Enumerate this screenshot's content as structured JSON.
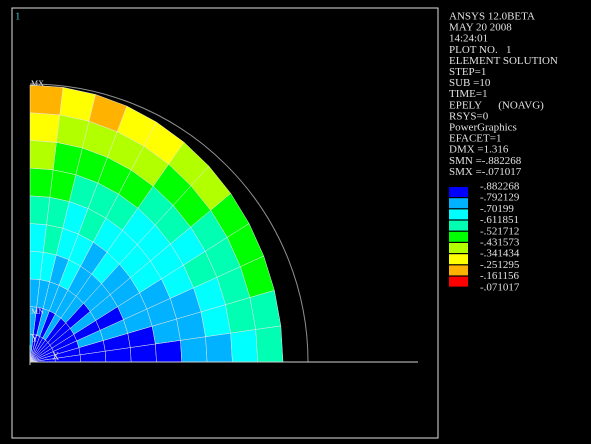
{
  "window_number": "1",
  "info_lines": [
    "ANSYS 12.0BETA",
    "MAY 20 2008",
    "14:24:01",
    "PLOT NO.   1",
    "ELEMENT SOLUTION",
    "STEP=1",
    "SUB =10",
    "TIME=1",
    "EPELY      (NOAVG)",
    "RSYS=0",
    "PowerGraphics",
    "EFACET=1",
    "DMX =1.316",
    "SMN =-.882268",
    "SMX =-.071017"
  ],
  "legend": {
    "colors": [
      "#0000ff",
      "#00b2ff",
      "#00ffff",
      "#00ffb2",
      "#00ff00",
      "#b2ff00",
      "#ffff00",
      "#ffb200",
      "#ff0000"
    ],
    "labels": [
      "-.882268",
      "-.792129",
      "-.70199",
      "-.611851",
      "-.521712",
      "-.431573",
      "-.341434",
      "-.251295",
      "-.161156",
      "-.071017"
    ]
  },
  "plot_labels": {
    "max": "MX",
    "min": "MN",
    "axis_y": "Y",
    "axis_x": "X"
  }
}
